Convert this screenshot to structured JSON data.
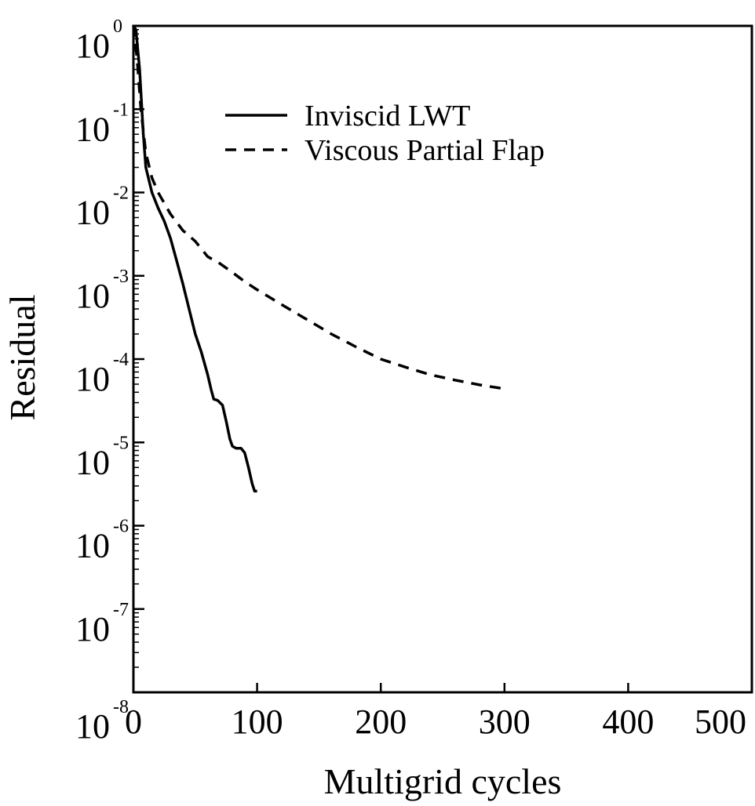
{
  "chart_data": {
    "type": "line",
    "xlabel": "Multigrid cycles",
    "ylabel": "Residual",
    "xlim": [
      0,
      500
    ],
    "ylim": [
      1e-08,
      1
    ],
    "y_scale": "log",
    "grid": false,
    "legend_placement": "top-center",
    "x_ticks": [
      "0",
      "100",
      "200",
      "300",
      "400",
      "500"
    ],
    "y_ticks": [
      {
        "base": "10",
        "exp": "0"
      },
      {
        "base": "10",
        "exp": "-1"
      },
      {
        "base": "10",
        "exp": "-2"
      },
      {
        "base": "10",
        "exp": "-3"
      },
      {
        "base": "10",
        "exp": "-4"
      },
      {
        "base": "10",
        "exp": "-5"
      },
      {
        "base": "10",
        "exp": "-6"
      },
      {
        "base": "10",
        "exp": "-7"
      },
      {
        "base": "10",
        "exp": "-8"
      }
    ],
    "series": [
      {
        "name": "Inviscid LWT",
        "style": "solid",
        "x": [
          0,
          2,
          5,
          8,
          10,
          15,
          20,
          25,
          30,
          35,
          40,
          45,
          50,
          55,
          60,
          63,
          65,
          68,
          72,
          75,
          78,
          80,
          83,
          87,
          90,
          93,
          96,
          98,
          100
        ],
        "y": [
          1,
          0.9,
          0.3,
          0.05,
          0.02,
          0.01,
          0.0065,
          0.0045,
          0.0028,
          0.0015,
          0.0008,
          0.0004,
          0.0002,
          0.00012,
          6.5e-05,
          4.2e-05,
          3.3e-05,
          3.2e-05,
          2.8e-05,
          1.8e-05,
          1.1e-05,
          9e-06,
          8.5e-06,
          8.5e-06,
          7.5e-06,
          5e-06,
          3.2e-06,
          2.6e-06,
          2.6e-06
        ]
      },
      {
        "name": "Viscous Partial Flap",
        "style": "dashed",
        "x": [
          0,
          3,
          6,
          10,
          15,
          20,
          30,
          40,
          50,
          60,
          70,
          80,
          90,
          100,
          120,
          140,
          160,
          180,
          200,
          220,
          240,
          260,
          280,
          300
        ],
        "y": [
          1,
          0.4,
          0.1,
          0.03,
          0.015,
          0.01,
          0.0055,
          0.0035,
          0.0026,
          0.0017,
          0.0014,
          0.0011,
          0.00085,
          0.00068,
          0.00045,
          0.0003,
          0.0002,
          0.00014,
          0.0001,
          8e-05,
          6.5e-05,
          5.6e-05,
          4.9e-05,
          4.4e-05
        ]
      }
    ]
  }
}
